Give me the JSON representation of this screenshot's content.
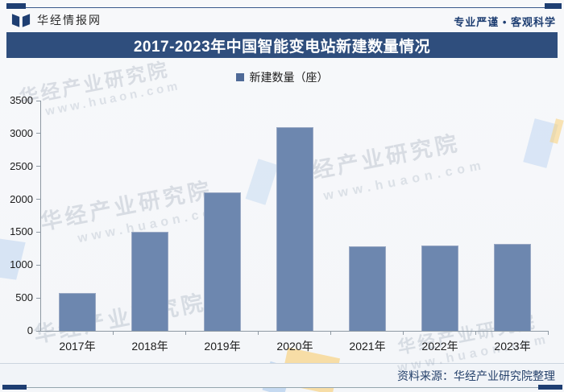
{
  "header": {
    "brand": "华经情报网",
    "slogan": "专业严谨 • 客观科学"
  },
  "title_bar": {
    "title": "2017-2023年中国智能变电站新建数量情况"
  },
  "legend": {
    "label": "新建数量（座）"
  },
  "chart_data": {
    "type": "bar",
    "title": "2017-2023年中国智能变电站新建数量情况",
    "categories": [
      "2017年",
      "2018年",
      "2019年",
      "2020年",
      "2021年",
      "2022年",
      "2023年"
    ],
    "series": [
      {
        "name": "新建数量（座）",
        "values": [
          580,
          1510,
          2110,
          3100,
          1280,
          1300,
          1320
        ]
      }
    ],
    "xlabel": "",
    "ylabel": "",
    "ylim": [
      0,
      3500
    ],
    "ytick_step": 500,
    "grid": false,
    "legend_position": "top",
    "bar_color": "#6d87af"
  },
  "footer": {
    "source": "资料来源：华经产业研究院整理"
  },
  "watermark": {
    "text": "华经产业研究院",
    "url": "www.huaon.com"
  },
  "colors": {
    "navy": "#2f4e7d",
    "navy_dark": "#1e3e72",
    "bar": "#6d87af",
    "bar_border": "#9aa9c4",
    "legend_swatch": "#4f6a97",
    "axis": "#8e99a3",
    "source_text": "#25416b",
    "watermark": "rgba(145,158,176,0.30)"
  }
}
